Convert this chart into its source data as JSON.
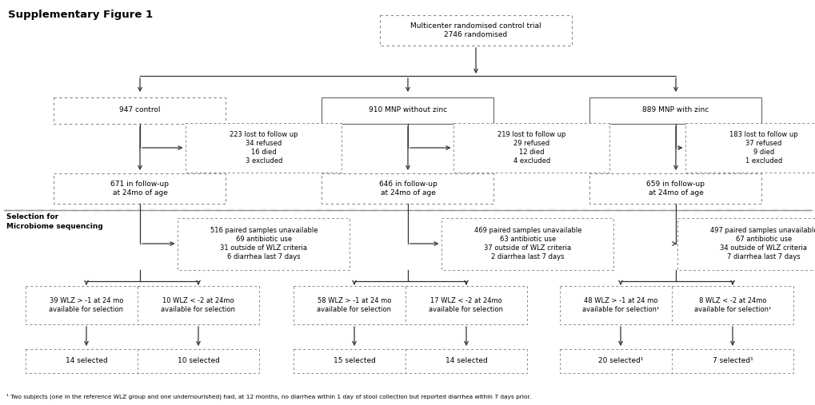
{
  "title": "Supplementary Figure 1",
  "footnote": "¹ Two subjects (one in the reference WLZ group and one undernourished) had, at 12 months, no diarrhea within 1 day of stool collection but reported diarrhea within 7 days prior.",
  "top_box": "Multicenter randomised control trial\n2746 randomised",
  "col1_box1": "947 control",
  "col2_box1": "910 MNP without zinc",
  "col3_box1": "889 MNP with zinc",
  "col1_exclusion": "223 lost to follow up\n34 refused\n16 died\n3 excluded",
  "col2_exclusion": "219 lost to follow up\n29 refused\n12 died\n4 excluded",
  "col3_exclusion": "183 lost to follow up\n37 refused\n9 died\n1 excluded",
  "col1_followup": "671 in follow-up\nat 24mo of age",
  "col2_followup": "646 in follow-up\nat 24mo of age",
  "col3_followup": "659 in follow-up\nat 24mo of age",
  "col1_unavail": "516 paired samples unavailable\n69 antibiotic use\n31 outside of WLZ criteria\n6 diarrhea last 7 days",
  "col2_unavail": "469 paired samples unavailable\n63 antibiotic use\n37 outside of WLZ criteria\n2 diarrhea last 7 days",
  "col3_unavail": "497 paired samples unavailable\n67 antibiotic use\n34 outside of WLZ criteria\n7 diarrhea last 7 days",
  "col1a_wlz": "39 WLZ > -1 at 24 mo\navailable for selection",
  "col1b_wlz": "10 WLZ < -2 at 24mo\navailable for selection",
  "col2a_wlz": "58 WLZ > -1 at 24 mo\navailable for selection",
  "col2b_wlz": "17 WLZ < -2 at 24mo\navailable for selection",
  "col3a_wlz": "48 WLZ > -1 at 24 mo\navailable for selection¹",
  "col3b_wlz": "8 WLZ < -2 at 24mo\navailable for selection¹",
  "col1a_sel": "14 selected",
  "col1b_sel": "10 selected",
  "col2a_sel": "15 selected",
  "col2b_sel": "14 selected",
  "col3a_sel": "20 selected¹",
  "col3b_sel": "7 selected¹",
  "selection_label": "Selection for\nMicrobiome sequencing",
  "bg_color": "#ffffff",
  "box_edge_solid": "#666666",
  "box_edge_dashed": "#888888",
  "arrow_color": "#333333",
  "text_color": "#000000",
  "sep_line_color": "#999999",
  "font_size": 6.5,
  "title_font_size": 9.5
}
